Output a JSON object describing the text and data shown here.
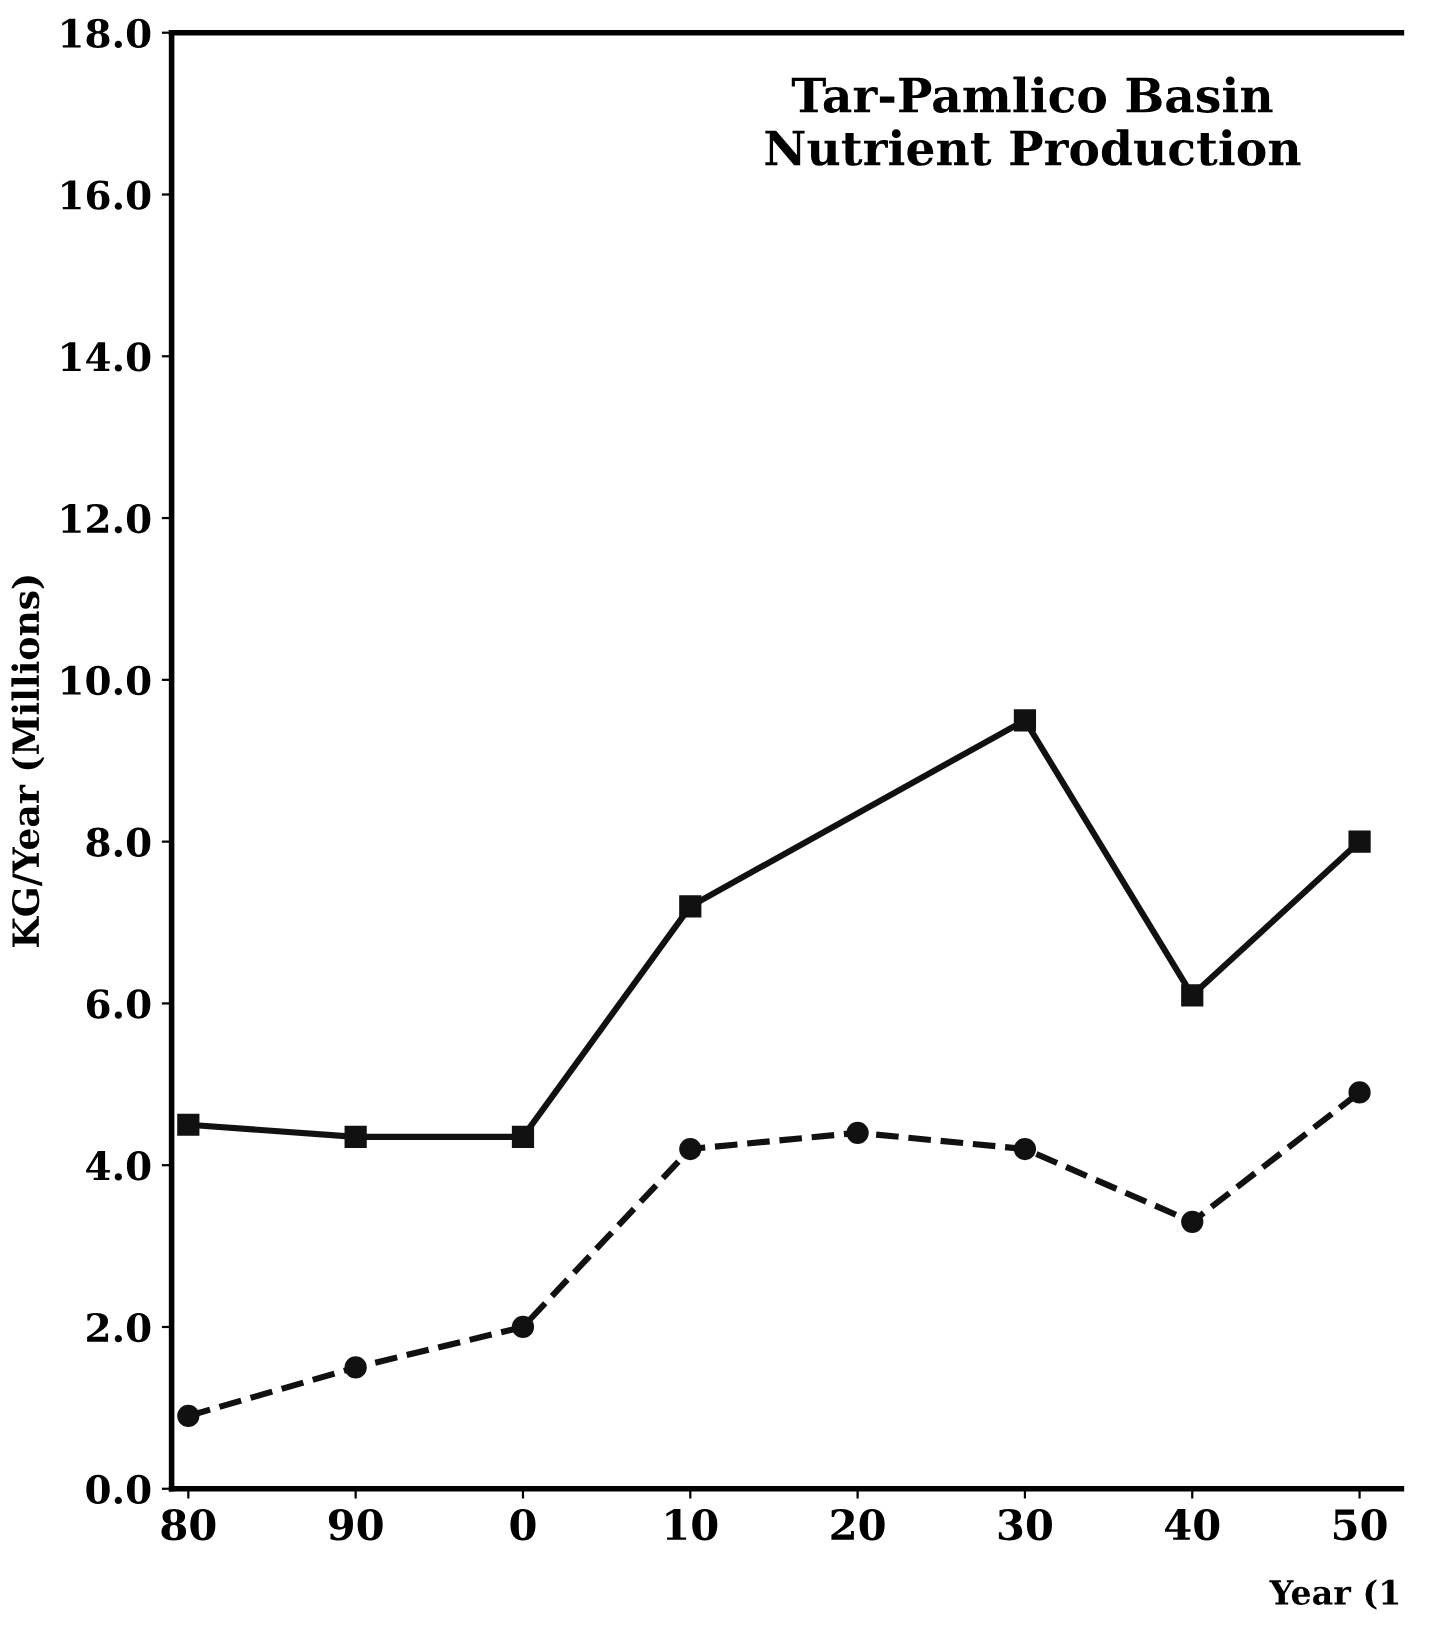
{
  "chart_data": {
    "type": "line",
    "title": "Tar-Pamlico Basin\nNutrient Production",
    "xlabel": "Year (1",
    "ylabel": "KG/Year (Millions)",
    "categories": [
      "80",
      "90",
      "0",
      "10",
      "20",
      "30",
      "40",
      "50"
    ],
    "series": [
      {
        "color": "#111111",
        "x": [
          "80",
          "90",
          "0",
          "10",
          "30",
          "40",
          "50"
        ],
        "values": [
          4.5,
          4.35,
          4.35,
          7.2,
          9.5,
          6.1,
          8.0
        ],
        "marker": "square",
        "line_style": "solid"
      },
      {
        "color": "#111111",
        "values": [
          0.9,
          1.5,
          2.0,
          4.2,
          4.4,
          4.2,
          3.3,
          4.9
        ],
        "marker": "circle",
        "line_style": "dashed"
      }
    ],
    "ylim": [
      0,
      18
    ],
    "yticks": [
      {
        "value": 0,
        "label": "0.0"
      },
      {
        "value": 2,
        "label": "2.0"
      },
      {
        "value": 4,
        "label": "4.0"
      },
      {
        "value": 6,
        "label": "6.0"
      },
      {
        "value": 8,
        "label": "8.0"
      },
      {
        "value": 10,
        "label": "10.0"
      },
      {
        "value": 12,
        "label": "12.0"
      },
      {
        "value": 14,
        "label": "14.0"
      },
      {
        "value": 16,
        "label": "16.0"
      },
      {
        "value": 18,
        "label": "18.0"
      }
    ],
    "grid": false,
    "legend": false
  }
}
